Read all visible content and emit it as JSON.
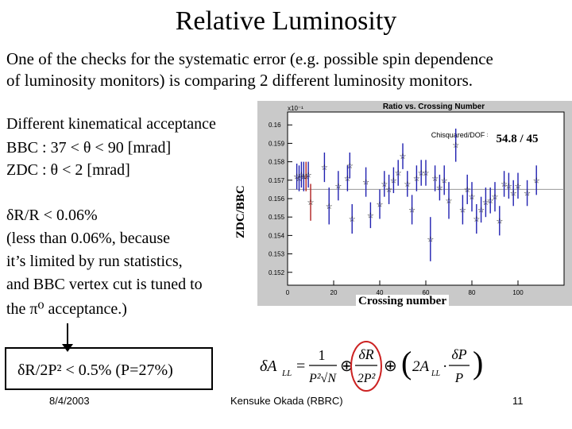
{
  "slide": {
    "title": "Relative Luminosity",
    "intro_line1": "One of the checks for the systematic error (e.g. possible spin dependence",
    "intro_line2": "of luminosity monitors) is comparing 2 different luminosity monitors.",
    "acceptance_heading": "Different kinematical acceptance",
    "bbc_line": "BBC : 37 < θ < 90 [mrad]",
    "zdc_line": "ZDC : θ < 2 [mrad]",
    "dr_line": "δR/R < 0.06%",
    "note_line1": "(less than 0.06%, because",
    "note_line2": "it’s limited by run statistics,",
    "note_line3": "and BBC vertex cut is tuned to",
    "note_line4": "the π⁰ acceptance.)",
    "result": "δR/2P² < 0.5% (P=27%)",
    "footer_date": "8/4/2003",
    "footer_author": "Kensuke Okada (RBRC)",
    "footer_page": "11"
  },
  "formula": {
    "lhs": "δA",
    "lhs_sub": "LL",
    "eq": "=",
    "frac1_num": "1",
    "frac1_den": "P²√N",
    "oplus": "⊕",
    "frac2_num": "δR",
    "frac2_den": "2P²",
    "term3_a": "2A",
    "term3_sub": "LL",
    "term3_dot": "·",
    "frac3_num": "δP",
    "frac3_den": "P"
  },
  "chart_data": {
    "type": "scatter",
    "title": "Ratio vs. Crossing Number",
    "xlabel": "Crossing number",
    "ylabel": "ZDC/BBC",
    "y_multiplier": "x10⁻¹",
    "chisq_label": "Chisquared/DOF =",
    "chisq_value": "54.8 / 45",
    "xlim": [
      0,
      120
    ],
    "ylim": [
      0.1513,
      0.1607
    ],
    "x_ticks": [
      0,
      20,
      40,
      60,
      80,
      100
    ],
    "y_ticks": [
      0.152,
      0.153,
      0.154,
      0.155,
      0.156,
      0.157,
      0.158,
      0.159,
      0.16
    ],
    "y_tick_labels": [
      "0.152",
      "0.153",
      "0.154",
      "0.155",
      "0.156",
      "0.157",
      "0.158",
      "0.159",
      "0.16"
    ],
    "fit_value": 0.1565,
    "colors": {
      "frame_bg": "#c9c9c9",
      "plot_bg": "#ffffff",
      "errorbar": "#2020b0",
      "errorbar_alt": "#b02020",
      "fit": "#999999"
    },
    "points": [
      {
        "x": 4,
        "y": 0.1572,
        "err": 0.0007
      },
      {
        "x": 5,
        "y": 0.1571,
        "err": 0.0007
      },
      {
        "x": 6,
        "y": 0.1573,
        "err": 0.0007
      },
      {
        "x": 7,
        "y": 0.1572,
        "err": 0.0008
      },
      {
        "x": 8,
        "y": 0.1572,
        "err": 0.0008,
        "alt": true
      },
      {
        "x": 9,
        "y": 0.1573,
        "err": 0.0007
      },
      {
        "x": 10,
        "y": 0.1558,
        "err": 0.001,
        "alt": true
      },
      {
        "x": 16,
        "y": 0.1577,
        "err": 0.0008
      },
      {
        "x": 18,
        "y": 0.1556,
        "err": 0.001
      },
      {
        "x": 22,
        "y": 0.1567,
        "err": 0.0008
      },
      {
        "x": 26,
        "y": 0.1571,
        "err": 0.0007
      },
      {
        "x": 27,
        "y": 0.1578,
        "err": 0.0007
      },
      {
        "x": 28,
        "y": 0.1549,
        "err": 0.0008
      },
      {
        "x": 34,
        "y": 0.1569,
        "err": 0.0008
      },
      {
        "x": 36,
        "y": 0.1551,
        "err": 0.0007
      },
      {
        "x": 40,
        "y": 0.1557,
        "err": 0.0008
      },
      {
        "x": 42,
        "y": 0.1568,
        "err": 0.0007
      },
      {
        "x": 44,
        "y": 0.1565,
        "err": 0.0008
      },
      {
        "x": 46,
        "y": 0.157,
        "err": 0.0007
      },
      {
        "x": 48,
        "y": 0.1574,
        "err": 0.0007
      },
      {
        "x": 50,
        "y": 0.1583,
        "err": 0.0007
      },
      {
        "x": 52,
        "y": 0.1568,
        "err": 0.0007
      },
      {
        "x": 54,
        "y": 0.1554,
        "err": 0.0008
      },
      {
        "x": 56,
        "y": 0.1571,
        "err": 0.0007
      },
      {
        "x": 58,
        "y": 0.1574,
        "err": 0.0007
      },
      {
        "x": 60,
        "y": 0.1574,
        "err": 0.0007
      },
      {
        "x": 62,
        "y": 0.1538,
        "err": 0.0012
      },
      {
        "x": 64,
        "y": 0.1571,
        "err": 0.0007
      },
      {
        "x": 66,
        "y": 0.1566,
        "err": 0.0007
      },
      {
        "x": 68,
        "y": 0.157,
        "err": 0.0008
      },
      {
        "x": 70,
        "y": 0.1559,
        "err": 0.001
      },
      {
        "x": 73,
        "y": 0.1589,
        "err": 0.0009
      },
      {
        "x": 76,
        "y": 0.1554,
        "err": 0.0008
      },
      {
        "x": 78,
        "y": 0.1565,
        "err": 0.0008
      },
      {
        "x": 80,
        "y": 0.1561,
        "err": 0.0008
      },
      {
        "x": 82,
        "y": 0.1549,
        "err": 0.0008
      },
      {
        "x": 84,
        "y": 0.1554,
        "err": 0.0007
      },
      {
        "x": 86,
        "y": 0.1558,
        "err": 0.0008
      },
      {
        "x": 88,
        "y": 0.1559,
        "err": 0.0007
      },
      {
        "x": 90,
        "y": 0.1561,
        "err": 0.0008
      },
      {
        "x": 92,
        "y": 0.1548,
        "err": 0.0008
      },
      {
        "x": 94,
        "y": 0.1568,
        "err": 0.0007
      },
      {
        "x": 96,
        "y": 0.1567,
        "err": 0.0007
      },
      {
        "x": 98,
        "y": 0.1563,
        "err": 0.0007
      },
      {
        "x": 100,
        "y": 0.1567,
        "err": 0.0007
      },
      {
        "x": 104,
        "y": 0.1563,
        "err": 0.0007
      },
      {
        "x": 108,
        "y": 0.157,
        "err": 0.0008
      }
    ]
  }
}
